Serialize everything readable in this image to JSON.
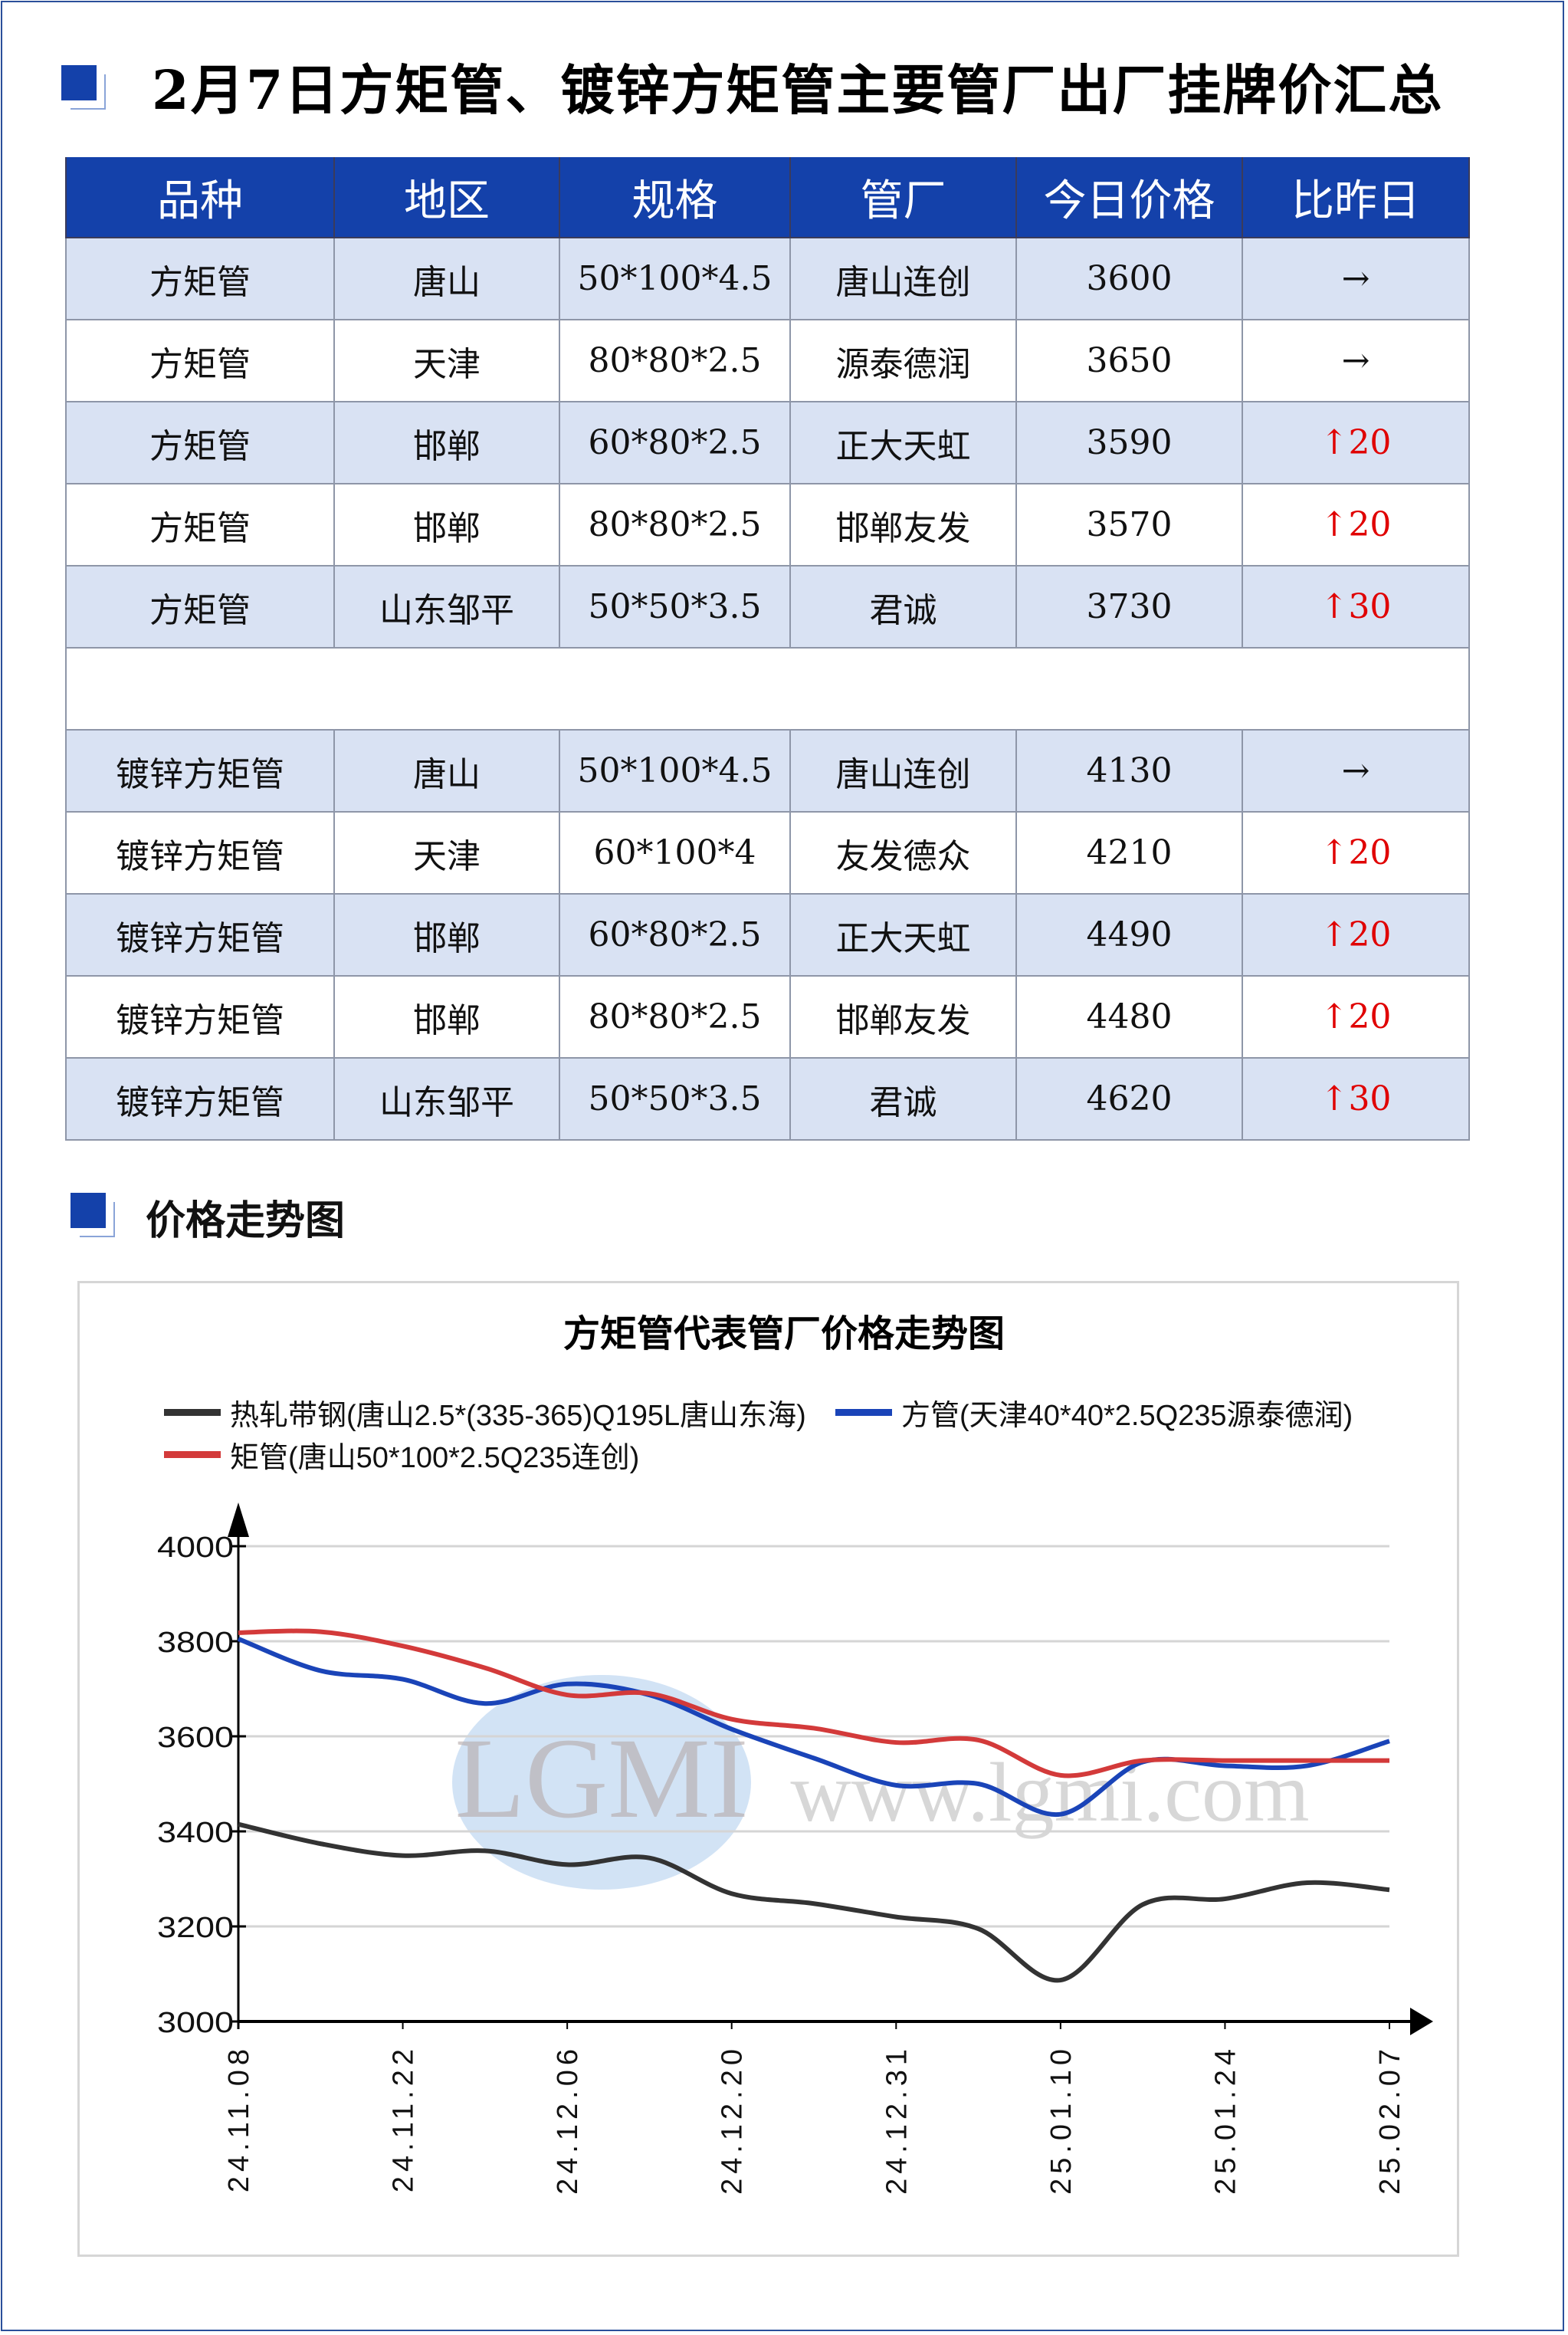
{
  "header": {
    "title": "2月7日方矩管、镀锌方矩管主要管厂出厂挂牌价汇总"
  },
  "table": {
    "columns": [
      "品种",
      "地区",
      "规格",
      "管厂",
      "今日价格",
      "比昨日"
    ],
    "rows": [
      {
        "cells": [
          "方矩管",
          "唐山",
          "50*100*4.5",
          "唐山连创",
          "3600"
        ],
        "change": {
          "arrow": "→",
          "value": ""
        }
      },
      {
        "cells": [
          "方矩管",
          "天津",
          "80*80*2.5",
          "源泰德润",
          "3650"
        ],
        "change": {
          "arrow": "→",
          "value": ""
        }
      },
      {
        "cells": [
          "方矩管",
          "邯郸",
          "60*80*2.5",
          "正大天虹",
          "3590"
        ],
        "change": {
          "arrow": "↑",
          "value": "20"
        }
      },
      {
        "cells": [
          "方矩管",
          "邯郸",
          "80*80*2.5",
          "邯郸友发",
          "3570"
        ],
        "change": {
          "arrow": "↑",
          "value": "20"
        }
      },
      {
        "cells": [
          "方矩管",
          "山东邹平",
          "50*50*3.5",
          "君诚",
          "3730"
        ],
        "change": {
          "arrow": "↑",
          "value": "30"
        }
      },
      {
        "blank": true
      },
      {
        "cells": [
          "镀锌方矩管",
          "唐山",
          "50*100*4.5",
          "唐山连创",
          "4130"
        ],
        "change": {
          "arrow": "→",
          "value": ""
        }
      },
      {
        "cells": [
          "镀锌方矩管",
          "天津",
          "60*100*4",
          "友发德众",
          "4210"
        ],
        "change": {
          "arrow": "↑",
          "value": "20"
        }
      },
      {
        "cells": [
          "镀锌方矩管",
          "邯郸",
          "60*80*2.5",
          "正大天虹",
          "4490"
        ],
        "change": {
          "arrow": "↑",
          "value": "20"
        }
      },
      {
        "cells": [
          "镀锌方矩管",
          "邯郸",
          "80*80*2.5",
          "邯郸友发",
          "4480"
        ],
        "change": {
          "arrow": "↑",
          "value": "20"
        }
      },
      {
        "cells": [
          "镀锌方矩管",
          "山东邹平",
          "50*50*3.5",
          "君诚",
          "4620"
        ],
        "change": {
          "arrow": "↑",
          "value": "30"
        }
      }
    ]
  },
  "section2": {
    "title": "价格走势图"
  },
  "colors": {
    "header_bg": "#1441aa",
    "row_alt": "#d9e2f3",
    "up": "#e00000"
  },
  "watermark": {
    "logo": "LGMI",
    "url": "www.lgmi.com"
  },
  "chart_data": {
    "type": "line",
    "title": "方矩管代表管厂价格走势图",
    "xlabel": "",
    "ylabel": "",
    "ylim": [
      3000,
      4000
    ],
    "yticks": [
      3000,
      3200,
      3400,
      3600,
      3800,
      4000
    ],
    "xtick_labels": [
      "24.11.08",
      "24.11.22",
      "24.12.06",
      "24.12.20",
      "24.12.31",
      "25.01.10",
      "25.01.24",
      "25.02.07"
    ],
    "grid": true,
    "legend": "top",
    "series": [
      {
        "name": "热轧带钢(唐山2.5*(335-365)Q195L唐山东海)",
        "color": "#333333",
        "values": [
          3415,
          3374,
          3349,
          3359,
          3330,
          3344,
          3269,
          3248,
          3220,
          3195,
          3087,
          3246,
          3258,
          3292,
          3277
        ]
      },
      {
        "name": "方管(天津40*40*2.5Q235源泰德润)",
        "color": "#1a44b8",
        "values": [
          3805,
          3738,
          3720,
          3669,
          3710,
          3687,
          3615,
          3554,
          3497,
          3500,
          3436,
          3546,
          3538,
          3538,
          3590
        ]
      },
      {
        "name": "矩管(唐山50*100*2.5Q235连创)",
        "color": "#d33a3a",
        "values": [
          3818,
          3820,
          3790,
          3744,
          3687,
          3690,
          3636,
          3617,
          3587,
          3592,
          3518,
          3549,
          3549,
          3549,
          3549
        ]
      }
    ]
  }
}
